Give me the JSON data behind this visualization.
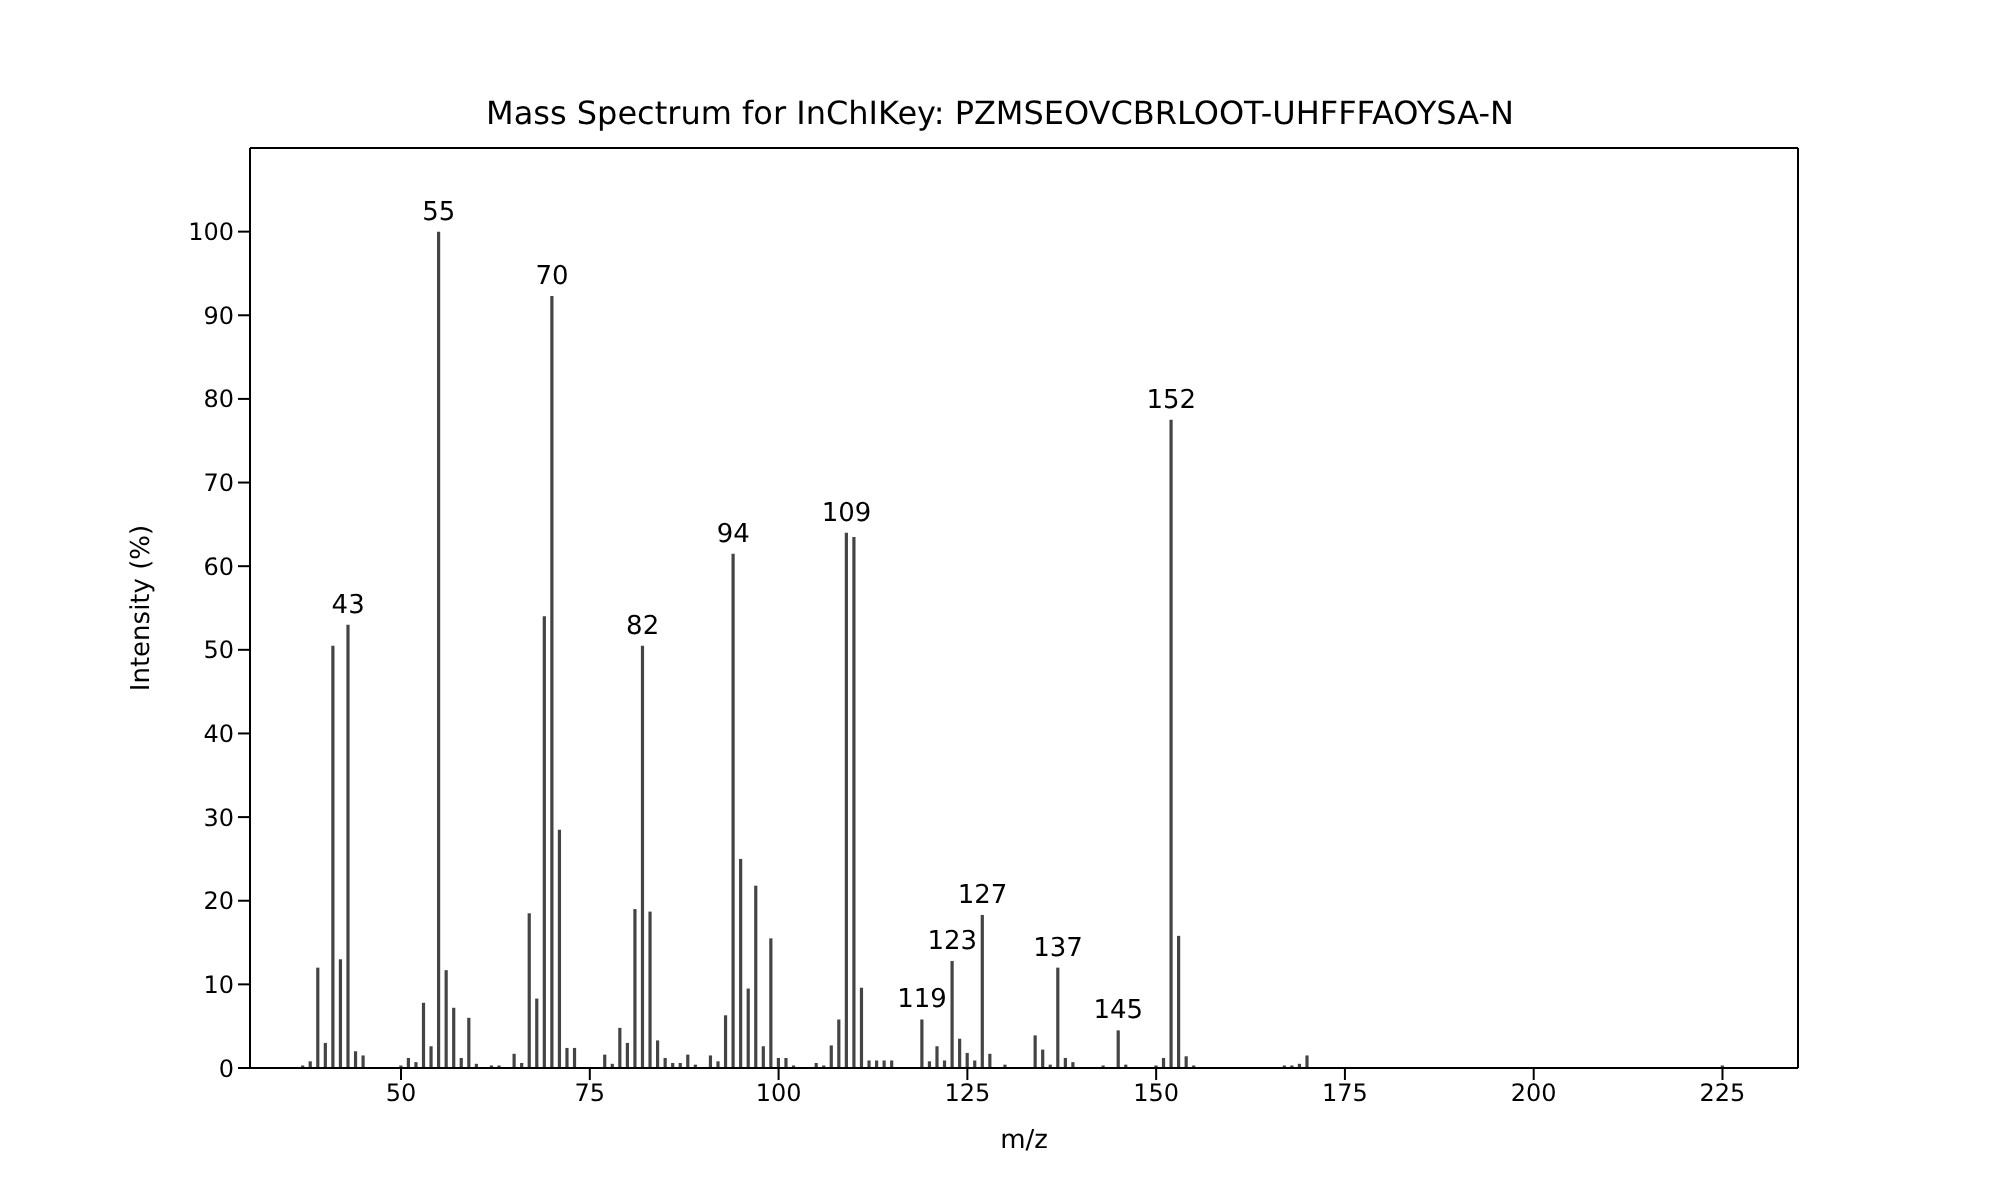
{
  "chart_data": {
    "type": "bar",
    "title": "Mass Spectrum for InChIKey: PZMSEOVCBRLOOT-UHFFFAOYSA-N",
    "xlabel": "m/z",
    "ylabel": "Intensity (%)",
    "x": [
      37,
      38,
      39,
      40,
      41,
      42,
      43,
      44,
      45,
      50,
      51,
      52,
      53,
      54,
      55,
      56,
      57,
      58,
      59,
      60,
      62,
      63,
      65,
      66,
      67,
      68,
      69,
      70,
      71,
      72,
      73,
      77,
      78,
      79,
      80,
      81,
      82,
      83,
      84,
      85,
      86,
      87,
      88,
      89,
      91,
      92,
      93,
      94,
      95,
      96,
      97,
      98,
      99,
      100,
      101,
      102,
      105,
      106,
      107,
      108,
      109,
      110,
      111,
      112,
      113,
      114,
      115,
      119,
      120,
      121,
      122,
      123,
      124,
      125,
      126,
      127,
      128,
      130,
      134,
      135,
      136,
      137,
      138,
      139,
      143,
      145,
      146,
      150,
      151,
      152,
      153,
      154,
      155,
      167,
      168,
      169,
      170,
      225
    ],
    "values": [
      0.3,
      0.8,
      12,
      3,
      50.5,
      13,
      53,
      2,
      1.5,
      0.3,
      1.2,
      0.7,
      7.8,
      2.6,
      100,
      11.7,
      7.2,
      1.2,
      6,
      0.5,
      0.3,
      0.3,
      1.7,
      0.6,
      18.5,
      8.3,
      54,
      92.3,
      28.5,
      2.4,
      2.4,
      1.6,
      0.5,
      4.8,
      3,
      19,
      50.5,
      18.7,
      3.3,
      1.2,
      0.6,
      0.6,
      1.6,
      0.4,
      1.5,
      0.8,
      6.3,
      61.5,
      25,
      9.5,
      21.8,
      2.6,
      15.5,
      1.2,
      1.2,
      0.3,
      0.6,
      0.3,
      2.7,
      5.8,
      64,
      63.5,
      9.6,
      0.9,
      0.9,
      0.9,
      0.9,
      5.8,
      0.8,
      2.6,
      0.9,
      12.8,
      3.5,
      1.8,
      0.9,
      18.3,
      1.7,
      0.4,
      3.9,
      2.2,
      0.4,
      12,
      1.2,
      0.7,
      0.3,
      4.5,
      0.4,
      0.3,
      1.2,
      77.5,
      15.8,
      1.4,
      0.3,
      0.3,
      0.3,
      0.5,
      1.5,
      0.3
    ],
    "color": "#444444",
    "xlim": [
      30,
      235
    ],
    "xticks": [
      50,
      75,
      100,
      125,
      150,
      175,
      200,
      225
    ],
    "ylim": [
      0,
      110
    ],
    "yticks": [
      0,
      10,
      20,
      30,
      40,
      50,
      60,
      70,
      80,
      90,
      100
    ],
    "annotations": [
      {
        "text": "43",
        "x": 43,
        "y": 53
      },
      {
        "text": "55",
        "x": 55,
        "y": 100
      },
      {
        "text": "70",
        "x": 70,
        "y": 92.3
      },
      {
        "text": "82",
        "x": 82,
        "y": 50.5
      },
      {
        "text": "94",
        "x": 94,
        "y": 61.5
      },
      {
        "text": "109",
        "x": 109,
        "y": 64
      },
      {
        "text": "119",
        "x": 119,
        "y": 5.8
      },
      {
        "text": "123",
        "x": 123,
        "y": 12.8
      },
      {
        "text": "127",
        "x": 127,
        "y": 18.3
      },
      {
        "text": "137",
        "x": 137,
        "y": 12
      },
      {
        "text": "145",
        "x": 145,
        "y": 4.5
      },
      {
        "text": "152",
        "x": 152,
        "y": 77.5
      }
    ]
  }
}
